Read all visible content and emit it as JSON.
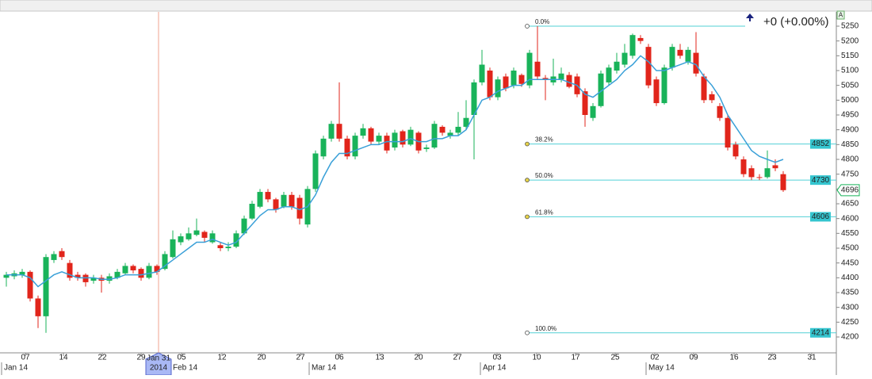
{
  "chart_data": {
    "type": "candlestick",
    "change_text": "+0 (+0.00%)",
    "up_color": "#19b35a",
    "down_color": "#e1251b",
    "ma_color": "#3aa0d8",
    "fib_color": "#52d0d6",
    "open": [
      4400,
      4405,
      4410,
      4420,
      4330,
      4270,
      4460,
      4490,
      4450,
      4410,
      4410,
      4390,
      4400,
      4390,
      4400,
      4415,
      4440,
      4430,
      4400,
      4440,
      4430,
      4470,
      4520,
      4530,
      4545,
      4555,
      4520,
      4510,
      4500,
      4505,
      4550,
      4600,
      4640,
      4690,
      4665,
      4640,
      4680,
      4670,
      4580,
      4700,
      4810,
      4870,
      4920,
      4870,
      4810,
      4880,
      4905,
      4860,
      4880,
      4840,
      4895,
      4850,
      4890,
      4835,
      4840,
      4910,
      4880,
      4890,
      4910,
      4950,
      5060,
      5100,
      5010,
      5080,
      5050,
      5085,
      5050,
      5130,
      5075,
      5060,
      5070,
      5085,
      5080,
      5030,
      4940,
      4980,
      5060,
      5100,
      5120,
      5150,
      5210,
      5180,
      5070,
      4990,
      5110,
      5170,
      5130,
      5160,
      5080,
      5020,
      4980,
      4940,
      4850,
      4800,
      4770,
      4740,
      4740,
      4780,
      4750
    ],
    "high": [
      4420,
      4425,
      4430,
      4425,
      4340,
      4480,
      4490,
      4500,
      4460,
      4420,
      4415,
      4410,
      4410,
      4415,
      4430,
      4450,
      4445,
      4435,
      4450,
      4445,
      4490,
      4560,
      4550,
      4570,
      4600,
      4560,
      4560,
      4520,
      4520,
      4560,
      4610,
      4660,
      4700,
      4700,
      4670,
      4690,
      4690,
      4680,
      4710,
      4830,
      4880,
      4930,
      5060,
      4880,
      4890,
      4920,
      4910,
      4890,
      4890,
      4900,
      4900,
      4910,
      4895,
      4850,
      4930,
      4915,
      4900,
      4960,
      5000,
      5070,
      5170,
      5110,
      5080,
      5090,
      5110,
      5090,
      5170,
      5250,
      5085,
      5140,
      5110,
      5095,
      5090,
      5040,
      4990,
      5100,
      5120,
      5160,
      5190,
      5225,
      5220,
      5190,
      5080,
      5120,
      5190,
      5190,
      5180,
      5230,
      5090,
      5030,
      4990,
      4950,
      4860,
      4810,
      4780,
      4750,
      4830,
      4800,
      4760
    ],
    "low": [
      4370,
      4395,
      4400,
      4320,
      4230,
      4214,
      4450,
      4460,
      4390,
      4390,
      4370,
      4380,
      4350,
      4380,
      4395,
      4410,
      4415,
      4390,
      4395,
      4410,
      4425,
      4465,
      4510,
      4525,
      4540,
      4520,
      4515,
      4490,
      4490,
      4500,
      4545,
      4595,
      4635,
      4655,
      4620,
      4635,
      4630,
      4580,
      4570,
      4690,
      4800,
      4860,
      4860,
      4800,
      4800,
      4870,
      4850,
      4850,
      4820,
      4830,
      4840,
      4845,
      4820,
      4825,
      4835,
      4880,
      4870,
      4880,
      4900,
      4800,
      5050,
      5000,
      5000,
      5030,
      5040,
      5045,
      5040,
      5070,
      5000,
      5050,
      5060,
      5040,
      5010,
      4910,
      4930,
      4975,
      5050,
      5090,
      5110,
      5140,
      5190,
      5040,
      4980,
      4985,
      5100,
      5140,
      5120,
      5080,
      4990,
      4990,
      4930,
      4830,
      4800,
      4740,
      4730,
      4730,
      4735,
      4760,
      4690
    ],
    "close": [
      4410,
      4415,
      4420,
      4330,
      4270,
      4470,
      4480,
      4470,
      4400,
      4400,
      4385,
      4400,
      4390,
      4405,
      4420,
      4440,
      4425,
      4400,
      4440,
      4420,
      4480,
      4530,
      4540,
      4550,
      4560,
      4535,
      4550,
      4500,
      4505,
      4550,
      4600,
      4650,
      4690,
      4665,
      4630,
      4680,
      4640,
      4600,
      4700,
      4820,
      4870,
      4920,
      4870,
      4810,
      4880,
      4905,
      4860,
      4880,
      4830,
      4890,
      4850,
      4900,
      4830,
      4840,
      4920,
      4890,
      4890,
      4910,
      4940,
      5060,
      5120,
      5010,
      5070,
      5040,
      5100,
      5055,
      5160,
      5080,
      5070,
      5080,
      5090,
      5045,
      5020,
      4950,
      4980,
      5090,
      5110,
      5130,
      5160,
      5220,
      5200,
      5050,
      4990,
      5110,
      5180,
      5150,
      5170,
      5090,
      5000,
      5000,
      4940,
      4840,
      4810,
      4750,
      4740,
      4738,
      4770,
      4770,
      4696
    ],
    "ma": [
      4410,
      4410,
      4410,
      4400,
      4370,
      4390,
      4410,
      4420,
      4410,
      4400,
      4400,
      4400,
      4395,
      4395,
      4400,
      4410,
      4410,
      4410,
      4415,
      4420,
      4440,
      4460,
      4480,
      4500,
      4520,
      4520,
      4530,
      4520,
      4510,
      4520,
      4550,
      4580,
      4610,
      4630,
      4630,
      4640,
      4640,
      4630,
      4640,
      4680,
      4740,
      4790,
      4820,
      4820,
      4830,
      4840,
      4850,
      4850,
      4860,
      4860,
      4860,
      4870,
      4860,
      4860,
      4870,
      4870,
      4880,
      4880,
      4900,
      4950,
      5000,
      5010,
      5030,
      5040,
      5050,
      5050,
      5070,
      5070,
      5070,
      5070,
      5070,
      5060,
      5050,
      5020,
      5010,
      5030,
      5050,
      5070,
      5100,
      5120,
      5150,
      5130,
      5100,
      5100,
      5110,
      5120,
      5130,
      5120,
      5080,
      5050,
      5010,
      4950,
      4910,
      4870,
      4830,
      4810,
      4800,
      4790,
      4800
    ],
    "fib_levels": [
      {
        "label": "0.0%",
        "value": 5250
      },
      {
        "label": "38.2%",
        "value": 4852
      },
      {
        "label": "50.0%",
        "value": 4730
      },
      {
        "label": "61.8%",
        "value": 4606
      },
      {
        "label": "100.0%",
        "value": 4214
      }
    ],
    "xlim": [
      -0.8,
      104.7
    ],
    "ylim": [
      4146.4,
      5298.2
    ],
    "yticks": [
      4200,
      4250,
      4300,
      4350,
      4400,
      4450,
      4500,
      4550,
      4600,
      4650,
      4700,
      4750,
      4800,
      4850,
      4900,
      4950,
      5000,
      5050,
      5100,
      5150,
      5200,
      5250
    ],
    "xticks": [
      {
        "value": 2.4,
        "label": "07"
      },
      {
        "value": 7.2,
        "label": "14"
      },
      {
        "value": 12.1,
        "label": "22"
      },
      {
        "value": 17,
        "label": "29"
      },
      {
        "value": 22.1,
        "label": "05"
      },
      {
        "value": 27.2,
        "label": "12"
      },
      {
        "value": 32.2,
        "label": "20"
      },
      {
        "value": 37.1,
        "label": "27"
      },
      {
        "value": 42,
        "label": "06"
      },
      {
        "value": 47.1,
        "label": "13"
      },
      {
        "value": 52,
        "label": "20"
      },
      {
        "value": 56.9,
        "label": "27"
      },
      {
        "value": 61.9,
        "label": "03"
      },
      {
        "value": 66.9,
        "label": "10"
      },
      {
        "value": 71.8,
        "label": "17"
      },
      {
        "value": 76.8,
        "label": "25"
      },
      {
        "value": 81.8,
        "label": "02"
      },
      {
        "value": 86.7,
        "label": "09"
      },
      {
        "value": 91.8,
        "label": "16"
      },
      {
        "value": 96.6,
        "label": "23"
      },
      {
        "value": 101.6,
        "label": "31"
      }
    ],
    "month_ticks": [
      {
        "value": -0.6,
        "label": "Jan 14"
      },
      {
        "value": 20.7,
        "label": "Feb 14"
      },
      {
        "value": 38.2,
        "label": "Mar 14"
      },
      {
        "value": 59.8,
        "label": "Apr 14"
      },
      {
        "value": 80.7,
        "label": "May 14"
      }
    ],
    "cursor": {
      "value": 19.2,
      "lines": [
        "Jan 31",
        "2014"
      ]
    }
  }
}
